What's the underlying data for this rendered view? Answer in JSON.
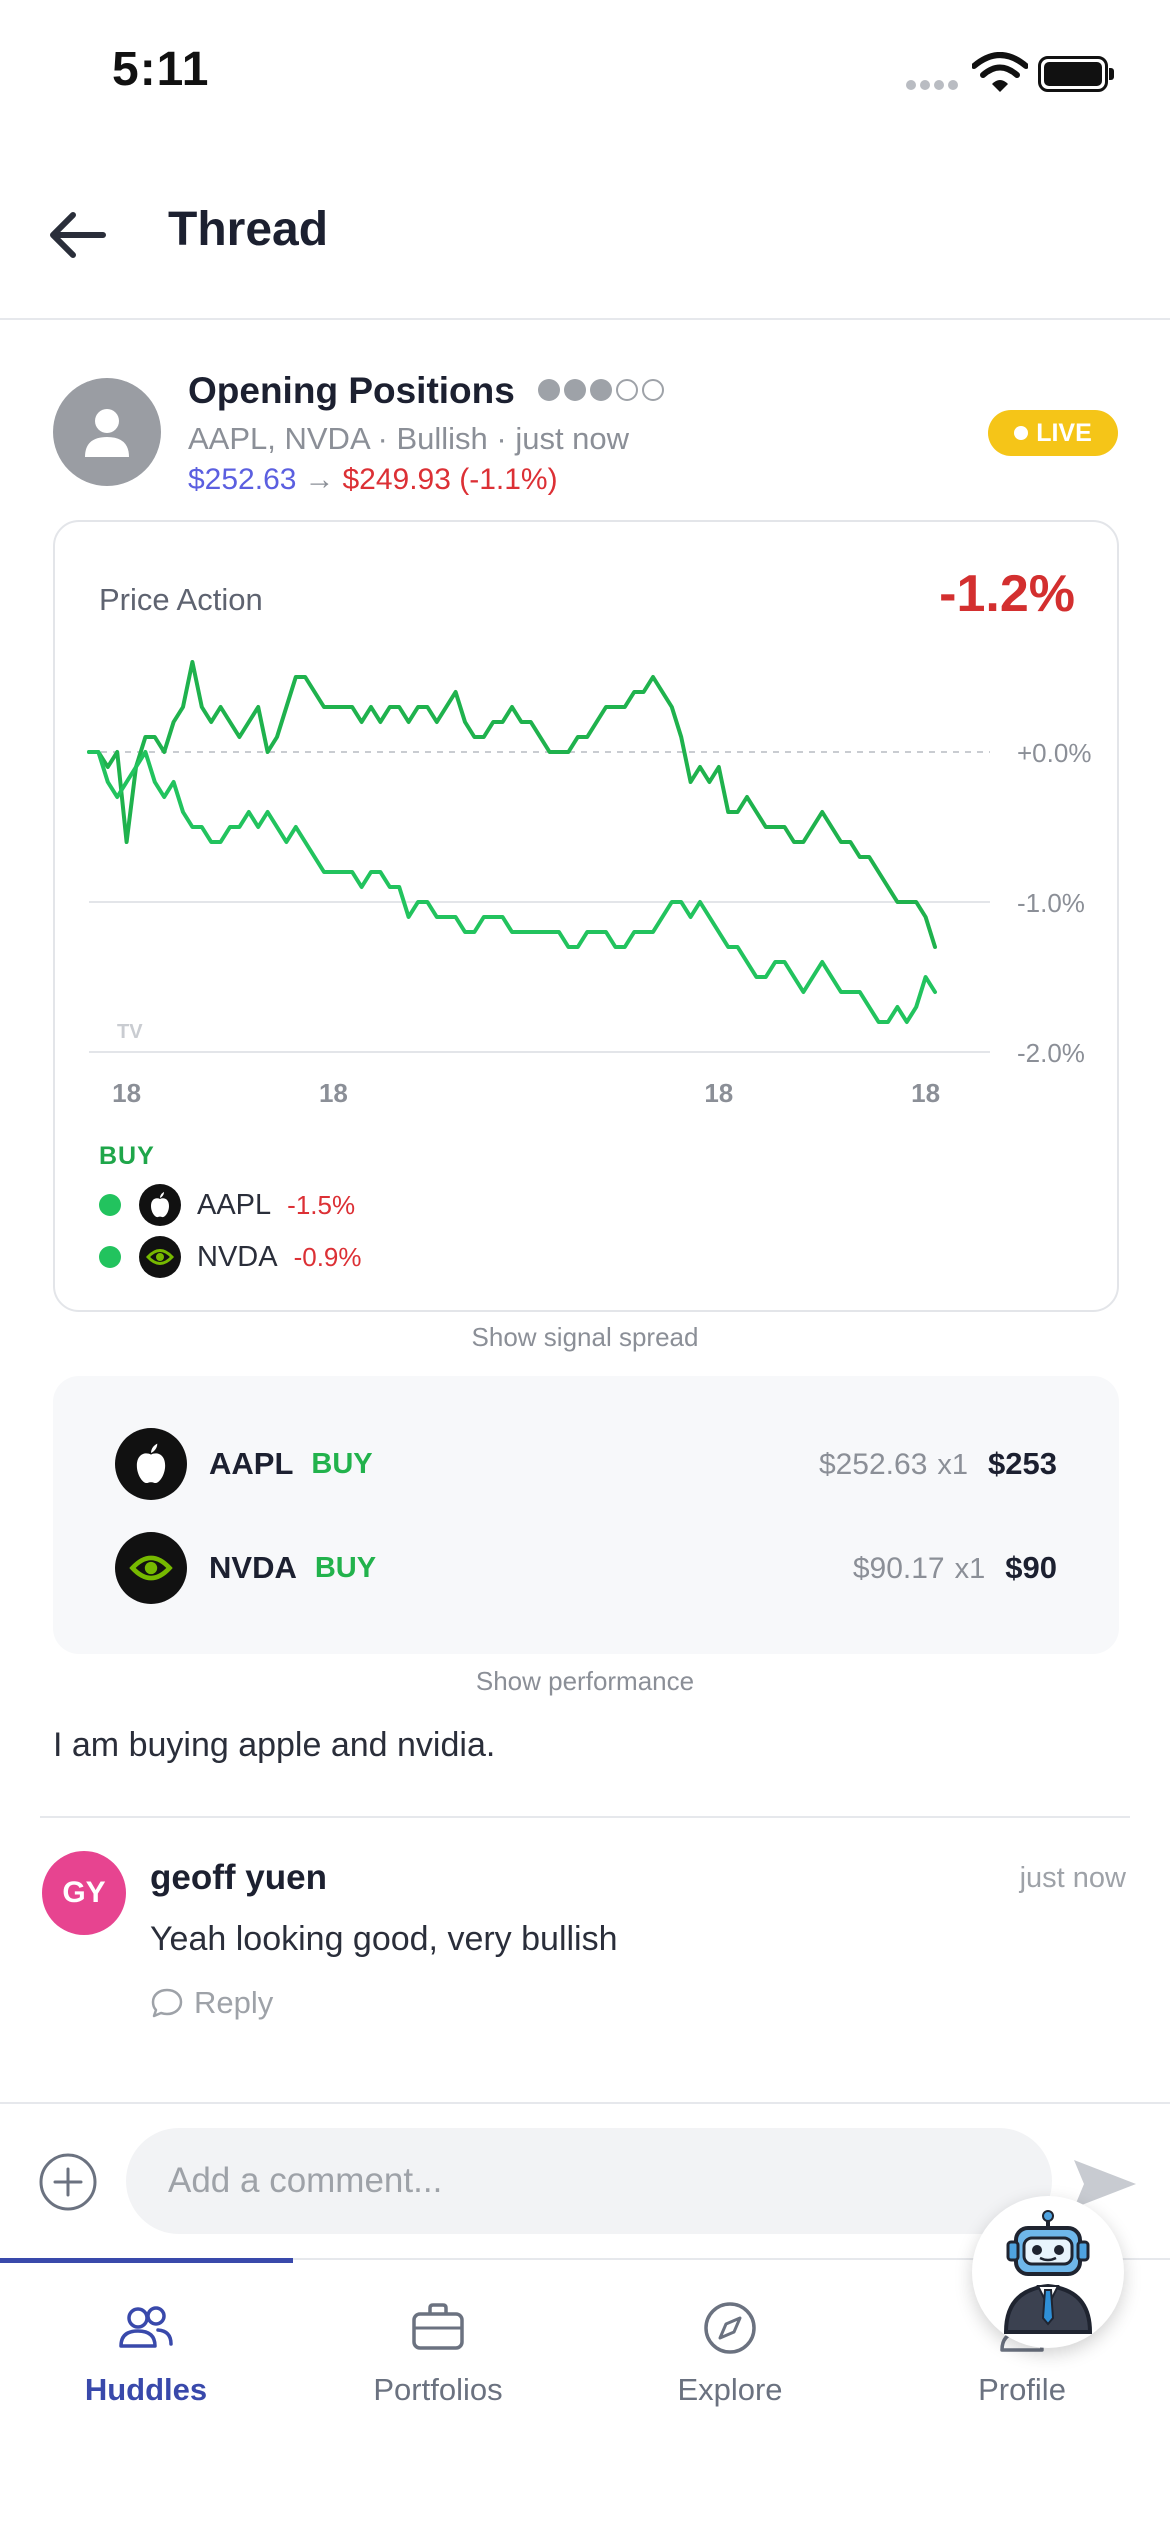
{
  "status_bar": {
    "time": "5:11"
  },
  "header": {
    "title": "Thread"
  },
  "post": {
    "title": "Opening Positions",
    "confidence_filled": 3,
    "confidence_total": 5,
    "meta": "AAPL, NVDA · Bullish · just now",
    "price_from": "$252.63",
    "price_arrow": "→",
    "price_to": "$249.93 (-1.1%)",
    "live_label": "LIVE",
    "body": "I am buying apple and nvidia."
  },
  "chart_card": {
    "label": "Price Action",
    "change": "-1.2%",
    "legend_heading": "BUY",
    "legend": [
      {
        "ticker": "AAPL",
        "change": "-1.5%",
        "icon": "apple-logo-icon"
      },
      {
        "ticker": "NVDA",
        "change": "-0.9%",
        "icon": "nvidia-logo-icon"
      }
    ]
  },
  "chart_data": {
    "type": "line",
    "title": "",
    "x_tick_labels": [
      "18",
      "18",
      "18",
      "18"
    ],
    "y_tick_labels": [
      "+0.0%",
      "-1.0%",
      "-2.0%"
    ],
    "ylim": [
      -2.0,
      0.6
    ],
    "x": [
      0,
      1,
      2,
      3,
      4,
      5,
      6,
      7,
      8,
      9,
      10,
      11,
      12,
      13,
      14,
      15,
      16,
      17,
      18,
      19,
      20,
      21,
      22,
      23,
      24,
      25,
      26,
      27,
      28,
      29,
      30,
      31,
      32,
      33,
      34,
      35,
      36,
      37,
      38,
      39,
      40,
      41,
      42,
      43,
      44,
      45,
      46,
      47,
      48,
      49,
      50,
      51,
      52,
      53,
      54,
      55,
      56,
      57,
      58,
      59,
      60,
      61,
      62,
      63,
      64,
      65,
      66,
      67,
      68,
      69,
      70,
      71,
      72,
      73,
      74,
      75,
      76,
      77,
      78,
      79,
      80,
      81,
      82,
      83,
      84,
      85,
      86,
      87,
      88,
      89,
      90
    ],
    "series": [
      {
        "values": [
          0.0,
          0.0,
          -0.1,
          0.0,
          -0.6,
          -0.1,
          0.1,
          0.1,
          0.0,
          0.2,
          0.3,
          0.6,
          0.3,
          0.2,
          0.3,
          0.2,
          0.1,
          0.2,
          0.3,
          0.0,
          0.1,
          0.3,
          0.5,
          0.5,
          0.4,
          0.3,
          0.3,
          0.3,
          0.3,
          0.2,
          0.3,
          0.2,
          0.3,
          0.3,
          0.2,
          0.3,
          0.3,
          0.2,
          0.3,
          0.4,
          0.2,
          0.1,
          0.1,
          0.2,
          0.2,
          0.3,
          0.2,
          0.2,
          0.1,
          0.0,
          0.0,
          0.0,
          0.1,
          0.1,
          0.2,
          0.3,
          0.3,
          0.3,
          0.4,
          0.4,
          0.5,
          0.4,
          0.3,
          0.1,
          -0.2,
          -0.1,
          -0.2,
          -0.1,
          -0.4,
          -0.4,
          -0.3,
          -0.4,
          -0.5,
          -0.5,
          -0.5,
          -0.6,
          -0.6,
          -0.5,
          -0.4,
          -0.5,
          -0.6,
          -0.6,
          -0.7,
          -0.7,
          -0.8,
          -0.9,
          -1.0,
          -1.0,
          -1.0,
          -1.1,
          -1.3
        ]
      },
      {
        "values": [
          0.0,
          0.0,
          -0.2,
          -0.3,
          -0.2,
          -0.1,
          0.0,
          -0.2,
          -0.3,
          -0.2,
          -0.4,
          -0.5,
          -0.5,
          -0.6,
          -0.6,
          -0.5,
          -0.5,
          -0.4,
          -0.5,
          -0.4,
          -0.5,
          -0.6,
          -0.5,
          -0.6,
          -0.7,
          -0.8,
          -0.8,
          -0.8,
          -0.8,
          -0.9,
          -0.8,
          -0.8,
          -0.9,
          -0.9,
          -1.1,
          -1.0,
          -1.0,
          -1.1,
          -1.1,
          -1.1,
          -1.2,
          -1.2,
          -1.1,
          -1.1,
          -1.1,
          -1.2,
          -1.2,
          -1.2,
          -1.2,
          -1.2,
          -1.2,
          -1.3,
          -1.3,
          -1.2,
          -1.2,
          -1.2,
          -1.3,
          -1.3,
          -1.2,
          -1.2,
          -1.2,
          -1.1,
          -1.0,
          -1.0,
          -1.1,
          -1.0,
          -1.1,
          -1.2,
          -1.3,
          -1.3,
          -1.4,
          -1.5,
          -1.5,
          -1.4,
          -1.4,
          -1.5,
          -1.6,
          -1.5,
          -1.4,
          -1.5,
          -1.6,
          -1.6,
          -1.6,
          -1.7,
          -1.8,
          -1.8,
          -1.7,
          -1.8,
          -1.7,
          -1.5,
          -1.6
        ]
      }
    ],
    "series_colors": [
      "#1fb24d",
      "#22c35e"
    ],
    "grid_values": [
      0.0,
      -1.0,
      -2.0
    ]
  },
  "links": {
    "signal_spread": "Show signal spread",
    "performance": "Show performance"
  },
  "positions": [
    {
      "ticker": "AAPL",
      "side": "BUY",
      "price": "$252.63",
      "qty": "x1",
      "total": "$253",
      "icon": "apple-logo-icon"
    },
    {
      "ticker": "NVDA",
      "side": "BUY",
      "price": "$90.17",
      "qty": "x1",
      "total": "$90",
      "icon": "nvidia-logo-icon"
    }
  ],
  "comment": {
    "initials": "GY",
    "author": "geoff yuen",
    "time": "just now",
    "text": "Yeah looking good, very bullish",
    "reply_label": "Reply"
  },
  "comment_bar": {
    "placeholder": "Add a comment..."
  },
  "tabs": [
    {
      "label": "Huddles",
      "icon": "users-icon",
      "active": true
    },
    {
      "label": "Portfolios",
      "icon": "briefcase-icon",
      "active": false
    },
    {
      "label": "Explore",
      "icon": "compass-icon",
      "active": false
    },
    {
      "label": "Profile",
      "icon": "person-icon",
      "active": false
    }
  ],
  "colors": {
    "accent": "#3949ab",
    "up": "#22b24c",
    "down": "#dc3035",
    "live": "#f5c518"
  }
}
